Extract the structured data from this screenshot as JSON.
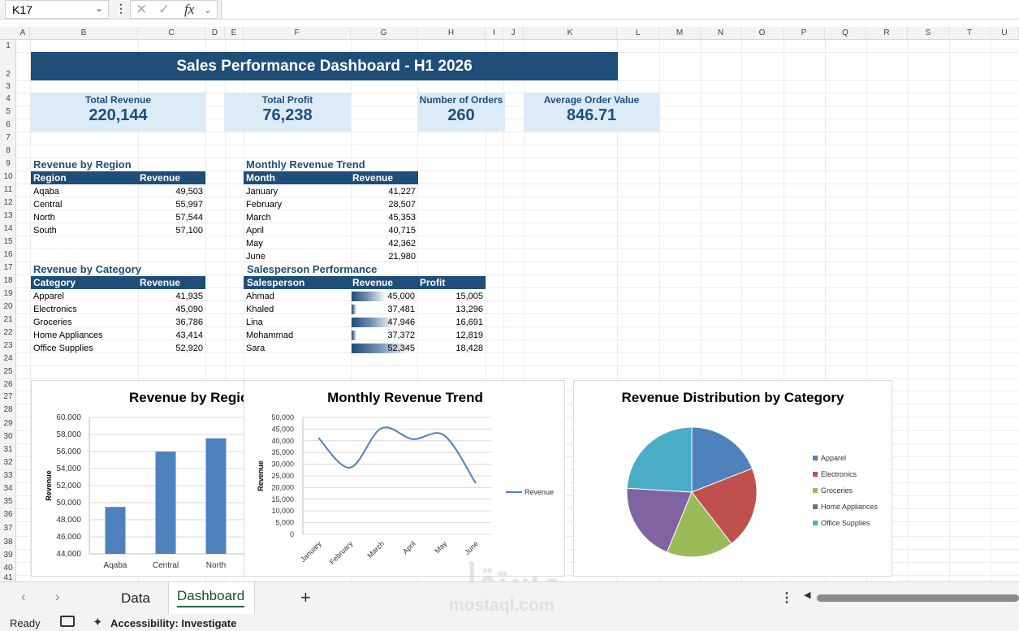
{
  "formula_bar": {
    "name_box": "K17",
    "fx": "fx"
  },
  "columns": [
    "A",
    "B",
    "C",
    "D",
    "E",
    "F",
    "G",
    "H",
    "I",
    "J",
    "K",
    "L",
    "M",
    "N",
    "O",
    "P",
    "Q",
    "R",
    "S",
    "T",
    "U"
  ],
  "rows": [
    "1",
    "2",
    "3",
    "4",
    "5",
    "6",
    "7",
    "8",
    "9",
    "10",
    "11",
    "12",
    "13",
    "14",
    "15",
    "16",
    "17",
    "18",
    "19",
    "20",
    "21",
    "22",
    "23",
    "24",
    "25",
    "26",
    "27",
    "28",
    "29",
    "30",
    "31",
    "32",
    "33",
    "34",
    "35",
    "36",
    "37",
    "38",
    "39",
    "40",
    "41"
  ],
  "dashboard": {
    "title": "Sales Performance Dashboard - H1 2026",
    "kpis": [
      {
        "label": "Total Revenue",
        "value": "220,144"
      },
      {
        "label": "Total Profit",
        "value": "76,238"
      },
      {
        "label": "Number of Orders",
        "value": "260"
      },
      {
        "label": "Average Order Value",
        "value": "846.71"
      }
    ]
  },
  "tables": {
    "region": {
      "title": "Revenue by Region",
      "headers": [
        "Region",
        "Revenue"
      ],
      "rows": [
        [
          "Aqaba",
          "49,503"
        ],
        [
          "Central",
          "55,997"
        ],
        [
          "North",
          "57,544"
        ],
        [
          "South",
          "57,100"
        ]
      ]
    },
    "monthly": {
      "title": "Monthly Revenue Trend",
      "headers": [
        "Month",
        "Revenue"
      ],
      "rows": [
        [
          "January",
          "41,227"
        ],
        [
          "February",
          "28,507"
        ],
        [
          "March",
          "45,353"
        ],
        [
          "April",
          "40,715"
        ],
        [
          "May",
          "42,362"
        ],
        [
          "June",
          "21,980"
        ]
      ]
    },
    "category": {
      "title": "Revenue by Category",
      "headers": [
        "Category",
        "Revenue"
      ],
      "rows": [
        [
          "Apparel",
          "41,935"
        ],
        [
          "Electronics",
          "45,090"
        ],
        [
          "Groceries",
          "36,786"
        ],
        [
          "Home Appliances",
          "43,414"
        ],
        [
          "Office Supplies",
          "52,920"
        ]
      ]
    },
    "salesperson": {
      "title": "Salesperson Performance",
      "headers": [
        "Salesperson",
        "Revenue",
        "Profit"
      ],
      "rows": [
        [
          "Ahmad",
          "45,000",
          "15,005"
        ],
        [
          "Khaled",
          "37,481",
          "13,296"
        ],
        [
          "Lina",
          "47,946",
          "16,691"
        ],
        [
          "Mohammad",
          "37,372",
          "12,819"
        ],
        [
          "Sara",
          "52,345",
          "18,428"
        ]
      ],
      "bar_fraction": [
        0.52,
        0.07,
        0.65,
        0.06,
        0.9
      ]
    }
  },
  "chart_data": [
    {
      "type": "bar",
      "title": "Revenue by Regic",
      "ylabel": "Revenue",
      "categories": [
        "Aqaba",
        "Central",
        "North"
      ],
      "values": [
        49503,
        55997,
        57544
      ],
      "ylim": [
        44000,
        60000
      ],
      "yticks": [
        "60,000",
        "58,000",
        "56,000",
        "54,000",
        "52,000",
        "50,000",
        "48,000",
        "46,000",
        "44,000"
      ],
      "color": "#4f81bd",
      "grid": true
    },
    {
      "type": "line",
      "title": "Monthly Revenue Trend",
      "ylabel": "Revenue",
      "categories": [
        "January",
        "February",
        "March",
        "April",
        "May",
        "June"
      ],
      "series": [
        {
          "name": "Revenue",
          "values": [
            41227,
            28507,
            45353,
            40715,
            42362,
            21980
          ]
        }
      ],
      "ylim": [
        0,
        50000
      ],
      "yticks": [
        "50,000",
        "45,000",
        "40,000",
        "35,000",
        "30,000",
        "25,000",
        "20,000",
        "15,000",
        "10,000",
        "5,000",
        "0"
      ],
      "legend": "right",
      "color": "#4f81bd",
      "grid": true
    },
    {
      "type": "pie",
      "title": "Revenue Distribution by Category",
      "categories": [
        "Apparel",
        "Electronics",
        "Groceries",
        "Home Appliances",
        "Office Supplies"
      ],
      "values": [
        41935,
        45090,
        36786,
        43414,
        52920
      ],
      "colors": [
        "#4f81bd",
        "#c0504d",
        "#9bbb59",
        "#8064a2",
        "#4bacc6"
      ],
      "legend": "right"
    }
  ],
  "sheets": {
    "tabs": [
      "Data",
      "Dashboard"
    ],
    "active": "Dashboard"
  },
  "status": {
    "ready": "Ready",
    "accessibility": "Accessibility: Investigate"
  },
  "watermark": {
    "arabic": "مستقل",
    "latin": "mostaql.com"
  }
}
